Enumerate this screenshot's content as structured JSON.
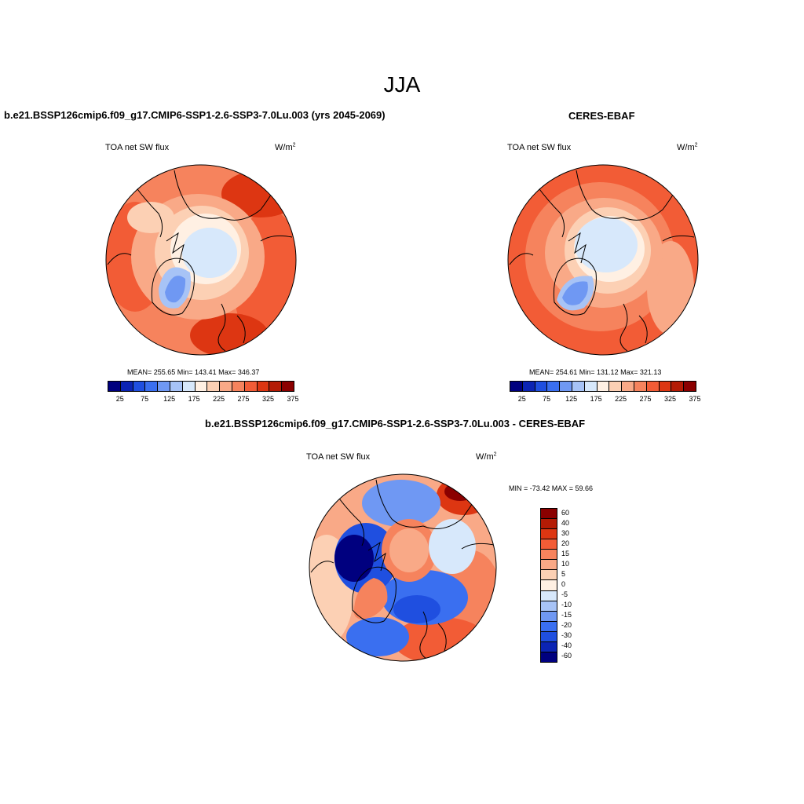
{
  "figure": {
    "season": "JJA",
    "panel1_title": "b.e21.BSSP126cmip6.f09_g17.CMIP6-SSP1-2.6-SSP3-7.0Lu.003 (yrs 2045-2069)",
    "panel2_title": "CERES-EBAF",
    "panel3_title": "b.e21.BSSP126cmip6.f09_g17.CMIP6-SSP1-2.6-SSP3-7.0Lu.003 - CERES-EBAF",
    "variable": "TOA net SW flux",
    "units_base": "W/m",
    "units_exp": "2"
  },
  "chart_data": [
    {
      "type": "heatmap",
      "projection": "north polar stereographic",
      "title": "b.e21.BSSP126cmip6.f09_g17.CMIP6-SSP1-2.6-SSP3-7.0Lu.003 (yrs 2045-2069)",
      "left_label": "TOA net SW flux",
      "right_label": "W/m2",
      "stats": "MEAN= 255.65  Min= 143.41  Max= 346.37",
      "mean": 255.65,
      "min": 143.41,
      "max": 346.37,
      "colorbar_levels": [
        25,
        50,
        75,
        100,
        125,
        150,
        175,
        200,
        225,
        250,
        275,
        300,
        325,
        350,
        375
      ],
      "colorbar_tick_labels": [
        "25",
        "75",
        "125",
        "175",
        "225",
        "275",
        "325",
        "375"
      ]
    },
    {
      "type": "heatmap",
      "projection": "north polar stereographic",
      "title": "CERES-EBAF",
      "left_label": "TOA net SW flux",
      "right_label": "W/m2",
      "stats": "MEAN= 254.61  Min= 131.12  Max= 321.13",
      "mean": 254.61,
      "min": 131.12,
      "max": 321.13,
      "colorbar_levels": [
        25,
        50,
        75,
        100,
        125,
        150,
        175,
        200,
        225,
        250,
        275,
        300,
        325,
        350,
        375
      ],
      "colorbar_tick_labels": [
        "25",
        "75",
        "125",
        "175",
        "225",
        "275",
        "325",
        "375"
      ]
    },
    {
      "type": "heatmap",
      "projection": "north polar stereographic",
      "title": "b.e21.BSSP126cmip6.f09_g17.CMIP6-SSP1-2.6-SSP3-7.0Lu.003 - CERES-EBAF",
      "left_label": "TOA net SW flux",
      "right_label": "W/m2",
      "stats": "MIN = -73.42 MAX =  59.66",
      "min": -73.42,
      "max": 59.66,
      "colorbar_levels": [
        60,
        40,
        30,
        20,
        15,
        10,
        5,
        0,
        -5,
        -10,
        -15,
        -20,
        -30,
        -40,
        -60
      ],
      "colorbar_tick_labels": [
        "60",
        "40",
        "30",
        "20",
        "15",
        "10",
        "5",
        "0",
        "-5",
        "-10",
        "-15",
        "-20",
        "-30",
        "-40",
        "-60"
      ]
    }
  ],
  "colors": {
    "abs_scale": [
      "#00007f",
      "#0b24b4",
      "#1f4fe0",
      "#3a6ff0",
      "#6f98f3",
      "#a7c3f6",
      "#d7e8fb",
      "#fff0e3",
      "#fcd0b4",
      "#f9a987",
      "#f6835d",
      "#f25c36",
      "#dd3612",
      "#b41b05",
      "#8b0000"
    ],
    "diff_scale": [
      "#8b0000",
      "#b41b05",
      "#dd3612",
      "#f25c36",
      "#f6835d",
      "#f9a987",
      "#fcd0b4",
      "#fff0e3",
      "#d7e8fb",
      "#a7c3f6",
      "#6f98f3",
      "#3a6ff0",
      "#1f4fe0",
      "#0b24b4",
      "#00007f"
    ]
  }
}
